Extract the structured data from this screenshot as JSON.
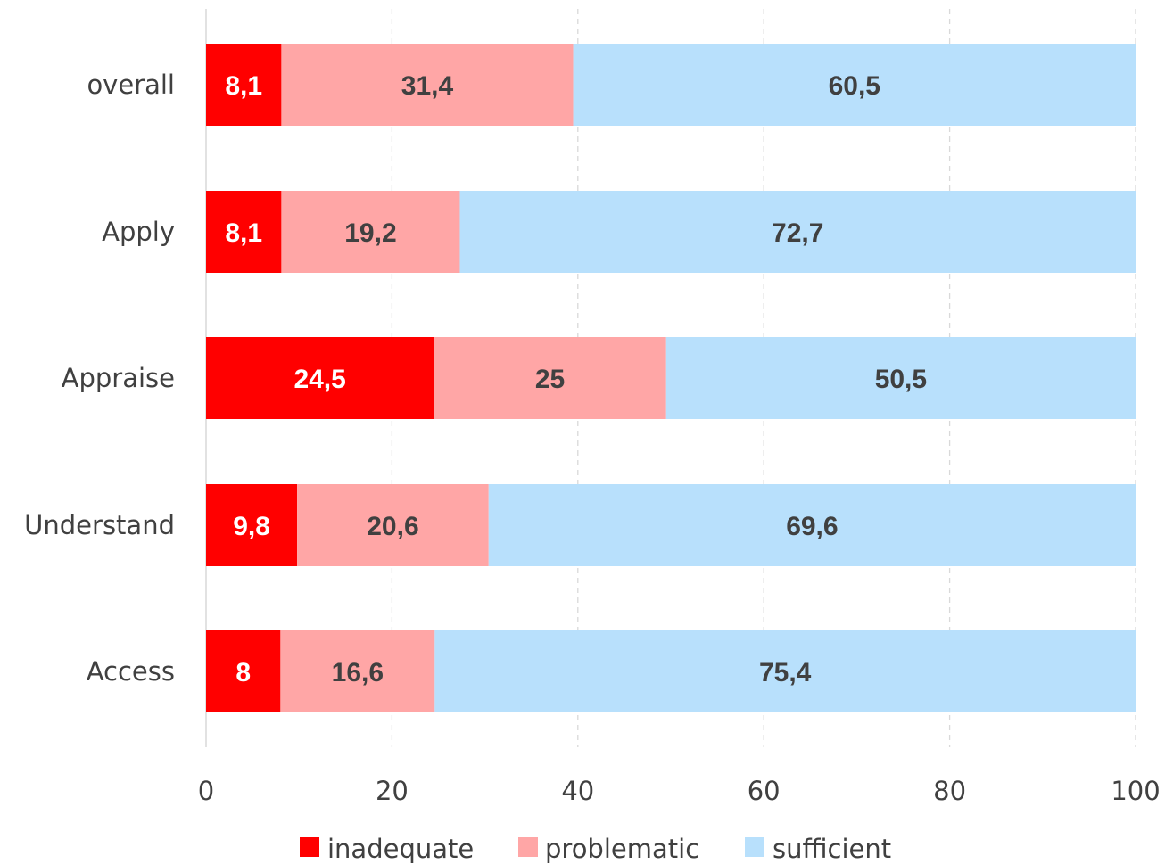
{
  "chart_data": {
    "type": "bar",
    "orientation": "horizontal",
    "stacked": true,
    "categories": [
      "overall",
      "Apply",
      "Appraise",
      "Understand",
      "Access"
    ],
    "series": [
      {
        "name": "inadequate",
        "color": "#ff0000",
        "label_color": "#ffffff",
        "values": [
          8.1,
          8.1,
          24.5,
          9.8,
          8
        ],
        "labels": [
          "8,1",
          "8,1",
          "24,5",
          "9,8",
          "8"
        ]
      },
      {
        "name": "problematic",
        "color": "#ffa6a6",
        "label_color": "#404040",
        "values": [
          31.4,
          19.2,
          25,
          20.6,
          16.6
        ],
        "labels": [
          "31,4",
          "19,2",
          "25",
          "20,6",
          "16,6"
        ]
      },
      {
        "name": "sufficient",
        "color": "#b8e0fc",
        "label_color": "#404040",
        "values": [
          60.5,
          72.7,
          50.5,
          69.6,
          75.4
        ],
        "labels": [
          "60,5",
          "72,7",
          "50,5",
          "69,6",
          "75,4"
        ]
      }
    ],
    "xlim": [
      0,
      100
    ],
    "xticks": [
      "0",
      "20",
      "40",
      "60",
      "80",
      "100"
    ],
    "grid": "vertical dashed",
    "legend_position": "bottom",
    "title": "",
    "xlabel": "",
    "ylabel": ""
  }
}
